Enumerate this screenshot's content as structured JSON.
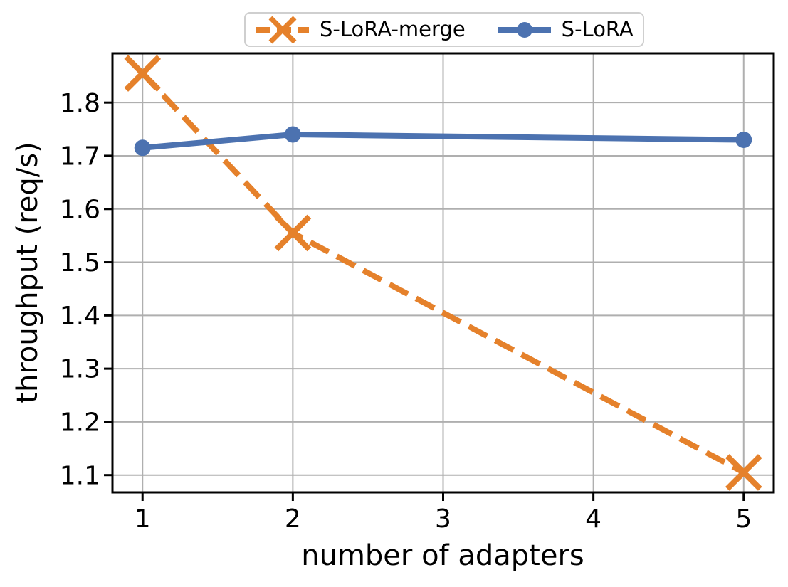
{
  "figure": {
    "background_color": "#ffffff",
    "text_color": "#000000"
  },
  "chart_data": {
    "type": "line",
    "title": "",
    "xlabel": "number of adapters",
    "ylabel": "throughput (req/s)",
    "x_tick_values": [
      1,
      2,
      3,
      4,
      5
    ],
    "x_tick_labels": [
      "1",
      "2",
      "3",
      "4",
      "5"
    ],
    "y_tick_values": [
      1.1,
      1.2,
      1.3,
      1.4,
      1.5,
      1.6,
      1.7,
      1.8
    ],
    "y_tick_labels": [
      "1.1",
      "1.2",
      "1.3",
      "1.4",
      "1.5",
      "1.6",
      "1.7",
      "1.8"
    ],
    "xlim": [
      0.8,
      5.2
    ],
    "ylim": [
      1.0675,
      1.8925
    ],
    "grid": true,
    "grid_color": "#afafaf",
    "axis_color": "#000000",
    "legend_position": "top-center-above-axes",
    "series": [
      {
        "name": "S-LoRA-merge",
        "color": "#E5812B",
        "line_style": "dashed",
        "marker": "x",
        "x": [
          1,
          2,
          5
        ],
        "y": [
          1.855,
          1.555,
          1.105
        ]
      },
      {
        "name": "S-LoRA",
        "color": "#4C72B0",
        "line_style": "solid",
        "marker": "circle",
        "x": [
          1,
          2,
          5
        ],
        "y": [
          1.715,
          1.74,
          1.73
        ]
      }
    ]
  }
}
